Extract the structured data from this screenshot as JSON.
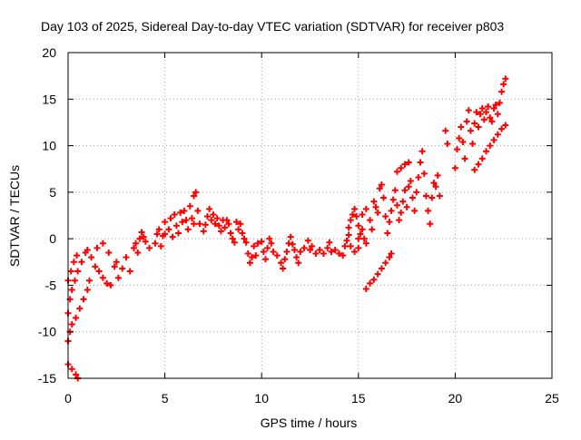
{
  "chart_data": {
    "type": "scatter",
    "title": "Day 103 of 2025, Sidereal Day-to-day VTEC variation (SDTVAR) for receiver p803",
    "xlabel": "GPS time / hours",
    "ylabel": "SDTVAR / TECUs",
    "xlim": [
      0,
      25
    ],
    "ylim": [
      -15,
      20
    ],
    "xticks": [
      0,
      5,
      10,
      15,
      20,
      25
    ],
    "xtick_labels": [
      "0",
      "5",
      "10",
      "15",
      "20",
      "25"
    ],
    "yticks": [
      -15,
      -10,
      -5,
      0,
      5,
      10,
      15,
      20
    ],
    "ytick_labels": [
      "-15",
      "-10",
      "-5",
      "0",
      "5",
      "10",
      "15",
      "20"
    ],
    "grid": true,
    "marker": "+",
    "series": [
      {
        "name": "SDTVAR",
        "color": "#ff0000",
        "points": [
          [
            0.0,
            -13.5
          ],
          [
            0.2,
            -14.0
          ],
          [
            0.4,
            -14.6
          ],
          [
            0.5,
            -15.0
          ],
          [
            0.0,
            -11.0
          ],
          [
            0.1,
            -10.0
          ],
          [
            0.2,
            -9.2
          ],
          [
            0.4,
            -8.5
          ],
          [
            0.6,
            -7.5
          ],
          [
            0.8,
            -6.5
          ],
          [
            1.0,
            -5.5
          ],
          [
            1.1,
            -4.5
          ],
          [
            0.0,
            -8.0
          ],
          [
            0.1,
            -6.5
          ],
          [
            0.2,
            -5.5
          ],
          [
            0.35,
            -4.5
          ],
          [
            0.5,
            -3.5
          ],
          [
            0.7,
            -2.5
          ],
          [
            0.9,
            -1.5
          ],
          [
            1.0,
            -1.2
          ],
          [
            0.0,
            -4.5
          ],
          [
            0.15,
            -3.5
          ],
          [
            0.3,
            -2.5
          ],
          [
            0.45,
            -1.8
          ],
          [
            1.2,
            -2.0
          ],
          [
            1.4,
            -3.0
          ],
          [
            1.6,
            -3.5
          ],
          [
            1.8,
            -4.2
          ],
          [
            2.0,
            -4.8
          ],
          [
            2.2,
            -5.0
          ],
          [
            1.5,
            -1.0
          ],
          [
            1.8,
            -0.5
          ],
          [
            2.1,
            -1.5
          ],
          [
            2.4,
            -3.0
          ],
          [
            2.6,
            -4.2
          ],
          [
            2.5,
            -2.5
          ],
          [
            2.8,
            -3.2
          ],
          [
            3.0,
            -2.0
          ],
          [
            3.2,
            -3.5
          ],
          [
            3.4,
            -1.0
          ],
          [
            3.5,
            -0.5
          ],
          [
            3.6,
            -1.5
          ],
          [
            3.7,
            0.0
          ],
          [
            3.8,
            0.7
          ],
          [
            3.9,
            0.2
          ],
          [
            4.0,
            -0.3
          ],
          [
            4.2,
            -1.0
          ],
          [
            4.5,
            -0.5
          ],
          [
            4.6,
            0.5
          ],
          [
            4.7,
            1.0
          ],
          [
            4.8,
            -0.8
          ],
          [
            4.9,
            0.3
          ],
          [
            5.0,
            0.5
          ],
          [
            5.0,
            1.8
          ],
          [
            5.2,
            1.0
          ],
          [
            5.3,
            2.2
          ],
          [
            5.4,
            0.2
          ],
          [
            5.5,
            2.6
          ],
          [
            5.6,
            1.4
          ],
          [
            5.7,
            0.6
          ],
          [
            5.8,
            2.8
          ],
          [
            5.9,
            1.8
          ],
          [
            6.0,
            3.0
          ],
          [
            6.1,
            2.0
          ],
          [
            6.2,
            1.0
          ],
          [
            6.3,
            3.5
          ],
          [
            6.4,
            2.2
          ],
          [
            6.5,
            1.6
          ],
          [
            6.5,
            4.6
          ],
          [
            6.6,
            5.0
          ],
          [
            6.7,
            3.0
          ],
          [
            6.8,
            1.6
          ],
          [
            7.0,
            0.8
          ],
          [
            7.1,
            1.5
          ],
          [
            7.2,
            2.4
          ],
          [
            7.3,
            3.2
          ],
          [
            7.4,
            2.0
          ],
          [
            7.5,
            2.6
          ],
          [
            7.6,
            1.6
          ],
          [
            7.7,
            2.2
          ],
          [
            7.8,
            1.4
          ],
          [
            7.9,
            0.8
          ],
          [
            8.0,
            2.0
          ],
          [
            8.1,
            1.2
          ],
          [
            8.2,
            2.0
          ],
          [
            8.3,
            1.6
          ],
          [
            8.4,
            0.6
          ],
          [
            8.5,
            0.0
          ],
          [
            8.6,
            -0.4
          ],
          [
            8.7,
            1.8
          ],
          [
            8.8,
            1.0
          ],
          [
            8.9,
            1.6
          ],
          [
            9.0,
            0.6
          ],
          [
            9.1,
            0.0
          ],
          [
            9.2,
            -0.4
          ],
          [
            9.3,
            -1.6
          ],
          [
            9.4,
            -2.6
          ],
          [
            9.5,
            -2.0
          ],
          [
            9.6,
            -0.8
          ],
          [
            9.7,
            -1.8
          ],
          [
            9.8,
            -0.5
          ],
          [
            10.0,
            -0.3
          ],
          [
            10.1,
            -1.4
          ],
          [
            10.2,
            -2.2
          ],
          [
            10.3,
            -1.0
          ],
          [
            10.4,
            0.0
          ],
          [
            10.5,
            -0.5
          ],
          [
            10.6,
            -1.4
          ],
          [
            10.8,
            -1.8
          ],
          [
            11.0,
            -2.6
          ],
          [
            11.1,
            -3.2
          ],
          [
            11.2,
            -2.2
          ],
          [
            11.3,
            -1.4
          ],
          [
            11.4,
            -0.5
          ],
          [
            11.5,
            0.2
          ],
          [
            11.6,
            -0.6
          ],
          [
            11.7,
            -1.2
          ],
          [
            11.8,
            -2.0
          ],
          [
            11.9,
            -2.6
          ],
          [
            12.0,
            -1.4
          ],
          [
            12.2,
            -1.0
          ],
          [
            12.4,
            -0.2
          ],
          [
            12.5,
            -1.2
          ],
          [
            12.6,
            -0.8
          ],
          [
            12.8,
            -1.6
          ],
          [
            13.0,
            -1.2
          ],
          [
            13.2,
            -1.6
          ],
          [
            13.4,
            -1.0
          ],
          [
            13.5,
            -0.4
          ],
          [
            13.6,
            -1.4
          ],
          [
            13.8,
            -1.2
          ],
          [
            14.0,
            -1.6
          ],
          [
            14.2,
            -1.8
          ],
          [
            14.3,
            -0.8
          ],
          [
            14.4,
            -0.2
          ],
          [
            14.5,
            0.4
          ],
          [
            14.6,
            -0.8
          ],
          [
            14.8,
            -1.4
          ],
          [
            15.0,
            -1.0
          ],
          [
            15.0,
            0.0
          ],
          [
            15.1,
            0.5
          ],
          [
            15.2,
            1.0
          ],
          [
            15.3,
            0.0
          ],
          [
            15.4,
            -0.5
          ],
          [
            14.5,
            1.2
          ],
          [
            14.6,
            2.0
          ],
          [
            14.7,
            2.6
          ],
          [
            14.8,
            3.2
          ],
          [
            14.9,
            2.4
          ],
          [
            15.0,
            1.4
          ],
          [
            15.2,
            2.6
          ],
          [
            15.4,
            3.2
          ],
          [
            15.6,
            2.0
          ],
          [
            15.7,
            1.0
          ],
          [
            15.8,
            4.0
          ],
          [
            15.9,
            3.4
          ],
          [
            16.0,
            2.8
          ],
          [
            16.1,
            5.4
          ],
          [
            16.2,
            5.8
          ],
          [
            16.3,
            4.4
          ],
          [
            16.4,
            2.4
          ],
          [
            16.5,
            0.6
          ],
          [
            16.6,
            1.8
          ],
          [
            16.7,
            3.0
          ],
          [
            16.8,
            4.2
          ],
          [
            16.9,
            5.2
          ],
          [
            17.0,
            3.6
          ],
          [
            17.1,
            2.0
          ],
          [
            17.2,
            2.8
          ],
          [
            17.3,
            4.0
          ],
          [
            17.4,
            5.2
          ],
          [
            17.5,
            3.4
          ],
          [
            17.6,
            5.6
          ],
          [
            17.7,
            6.2
          ],
          [
            17.8,
            4.4
          ],
          [
            17.9,
            3.0
          ],
          [
            18.0,
            5.0
          ],
          [
            18.1,
            6.6
          ],
          [
            18.2,
            8.2
          ],
          [
            18.3,
            9.4
          ],
          [
            18.4,
            7.0
          ],
          [
            18.5,
            4.6
          ],
          [
            18.6,
            3.0
          ],
          [
            18.7,
            1.6
          ],
          [
            17.0,
            7.2
          ],
          [
            17.2,
            7.6
          ],
          [
            17.4,
            8.0
          ],
          [
            17.6,
            8.2
          ],
          [
            18.8,
            4.4
          ],
          [
            18.9,
            6.0
          ],
          [
            19.0,
            5.6
          ],
          [
            19.1,
            6.8
          ],
          [
            19.2,
            4.6
          ],
          [
            19.5,
            11.6
          ],
          [
            19.6,
            10.2
          ],
          [
            15.4,
            -5.4
          ],
          [
            15.6,
            -4.8
          ],
          [
            15.8,
            -4.4
          ],
          [
            16.0,
            -3.8
          ],
          [
            16.2,
            -3.2
          ],
          [
            16.4,
            -2.6
          ],
          [
            16.6,
            -2.0
          ],
          [
            16.7,
            -1.6
          ],
          [
            20.0,
            7.6
          ],
          [
            20.1,
            9.6
          ],
          [
            20.2,
            10.8
          ],
          [
            20.3,
            12.0
          ],
          [
            20.4,
            10.4
          ],
          [
            20.5,
            8.6
          ],
          [
            20.6,
            12.6
          ],
          [
            20.7,
            13.8
          ],
          [
            20.8,
            11.6
          ],
          [
            20.9,
            10.2
          ],
          [
            21.0,
            12.4
          ],
          [
            21.1,
            13.6
          ],
          [
            21.2,
            12.0
          ],
          [
            21.3,
            13.4
          ],
          [
            21.4,
            14.0
          ],
          [
            21.5,
            12.8
          ],
          [
            21.6,
            13.6
          ],
          [
            21.7,
            14.2
          ],
          [
            21.8,
            13.0
          ],
          [
            21.9,
            12.6
          ],
          [
            22.0,
            14.0
          ],
          [
            22.1,
            14.4
          ],
          [
            22.2,
            13.4
          ],
          [
            22.3,
            14.6
          ],
          [
            22.4,
            15.8
          ],
          [
            22.5,
            16.6
          ],
          [
            22.6,
            17.2
          ],
          [
            21.0,
            7.4
          ],
          [
            21.2,
            8.0
          ],
          [
            21.4,
            8.6
          ],
          [
            21.6,
            9.4
          ],
          [
            21.8,
            10.0
          ],
          [
            22.0,
            10.6
          ],
          [
            22.2,
            11.2
          ],
          [
            22.4,
            11.8
          ],
          [
            22.6,
            12.2
          ]
        ]
      }
    ]
  }
}
